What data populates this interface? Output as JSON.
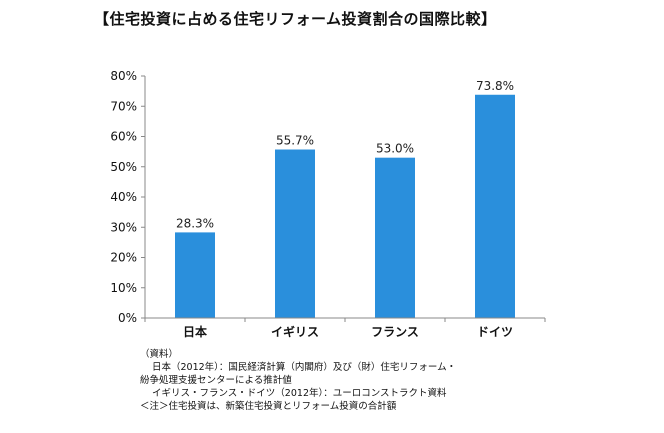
{
  "chart_data": {
    "type": "bar",
    "title": "【住宅投資に占める住宅リフォーム投資割合の国際比較】",
    "categories": [
      "日本",
      "イギリス",
      "フランス",
      "ドイツ"
    ],
    "values": [
      28.3,
      55.7,
      53.0,
      73.8
    ],
    "data_labels": [
      "28.3%",
      "55.7%",
      "53.0%",
      "73.8%"
    ],
    "ylim": [
      0,
      80
    ],
    "yticks": [
      0,
      10,
      20,
      30,
      40,
      50,
      60,
      70,
      80
    ],
    "ytick_labels": [
      "0%",
      "10%",
      "20%",
      "30%",
      "40%",
      "50%",
      "60%",
      "70%",
      "80%"
    ],
    "xlabel": "",
    "ylabel": "",
    "grid": false,
    "bar_color": "#2a8fdc"
  },
  "notes": {
    "heading": "（資料）",
    "line1": "日本（2012年）：国民経済計算（内閣府）及び（財）住宅リフォーム・",
    "line2": "紛争処理支援センターによる推計値",
    "line3": "イギリス・フランス・ドイツ（2012年）：ユーロコンストラクト資料",
    "line4": "＜注＞住宅投資は、新築住宅投資とリフォーム投資の合計額"
  }
}
